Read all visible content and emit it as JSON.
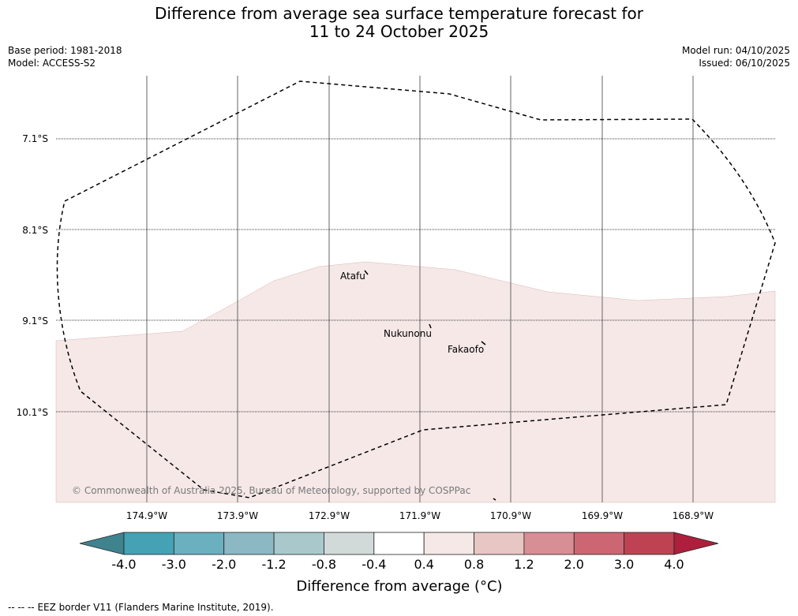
{
  "title": {
    "line1": "Difference from average sea surface temperature forecast for",
    "line2": "11 to 24 October 2025"
  },
  "meta": {
    "base_period": "Base period: 1981-2018",
    "model": "Model: ACCESS-S2",
    "model_run": "Model run: 04/10/2025",
    "issued": "Issued: 06/10/2025"
  },
  "map": {
    "lat_labels": [
      "7.1°S",
      "8.1°S",
      "9.1°S",
      "10.1°S"
    ],
    "lon_labels": [
      "174.9°W",
      "173.9°W",
      "172.9°W",
      "171.9°W",
      "170.9°W",
      "169.9°W",
      "168.9°W"
    ],
    "places": [
      "Atafu",
      "Nukunonu",
      "Fakaofo"
    ],
    "credit": "© Commonwealth of Australia 2025, Bureau of Meteorology, supported by COSPPac",
    "anomaly_fill_color": "#f5e8e7",
    "anomaly_category": "0.4 to 0.8"
  },
  "colorbar": {
    "ticks": [
      "-4.0",
      "-3.0",
      "-2.0",
      "-1.2",
      "-0.8",
      "-0.4",
      "0.4",
      "0.8",
      "1.2",
      "2.0",
      "3.0",
      "4.0"
    ],
    "colors": [
      "#3f838e",
      "#44a2b4",
      "#6bb0bf",
      "#8cb8c3",
      "#a9c8cc",
      "#d1d9d9",
      "#ffffff",
      "#f5e8e7",
      "#e8c6c3",
      "#d88e95",
      "#cd6673",
      "#bf4253",
      "#ad1f3c"
    ],
    "title": "Difference from average (°C)"
  },
  "footer": {
    "legend_symbol": "-- -- --",
    "text": "EEZ border V11 (Flanders Marine Institute, 2019)."
  }
}
